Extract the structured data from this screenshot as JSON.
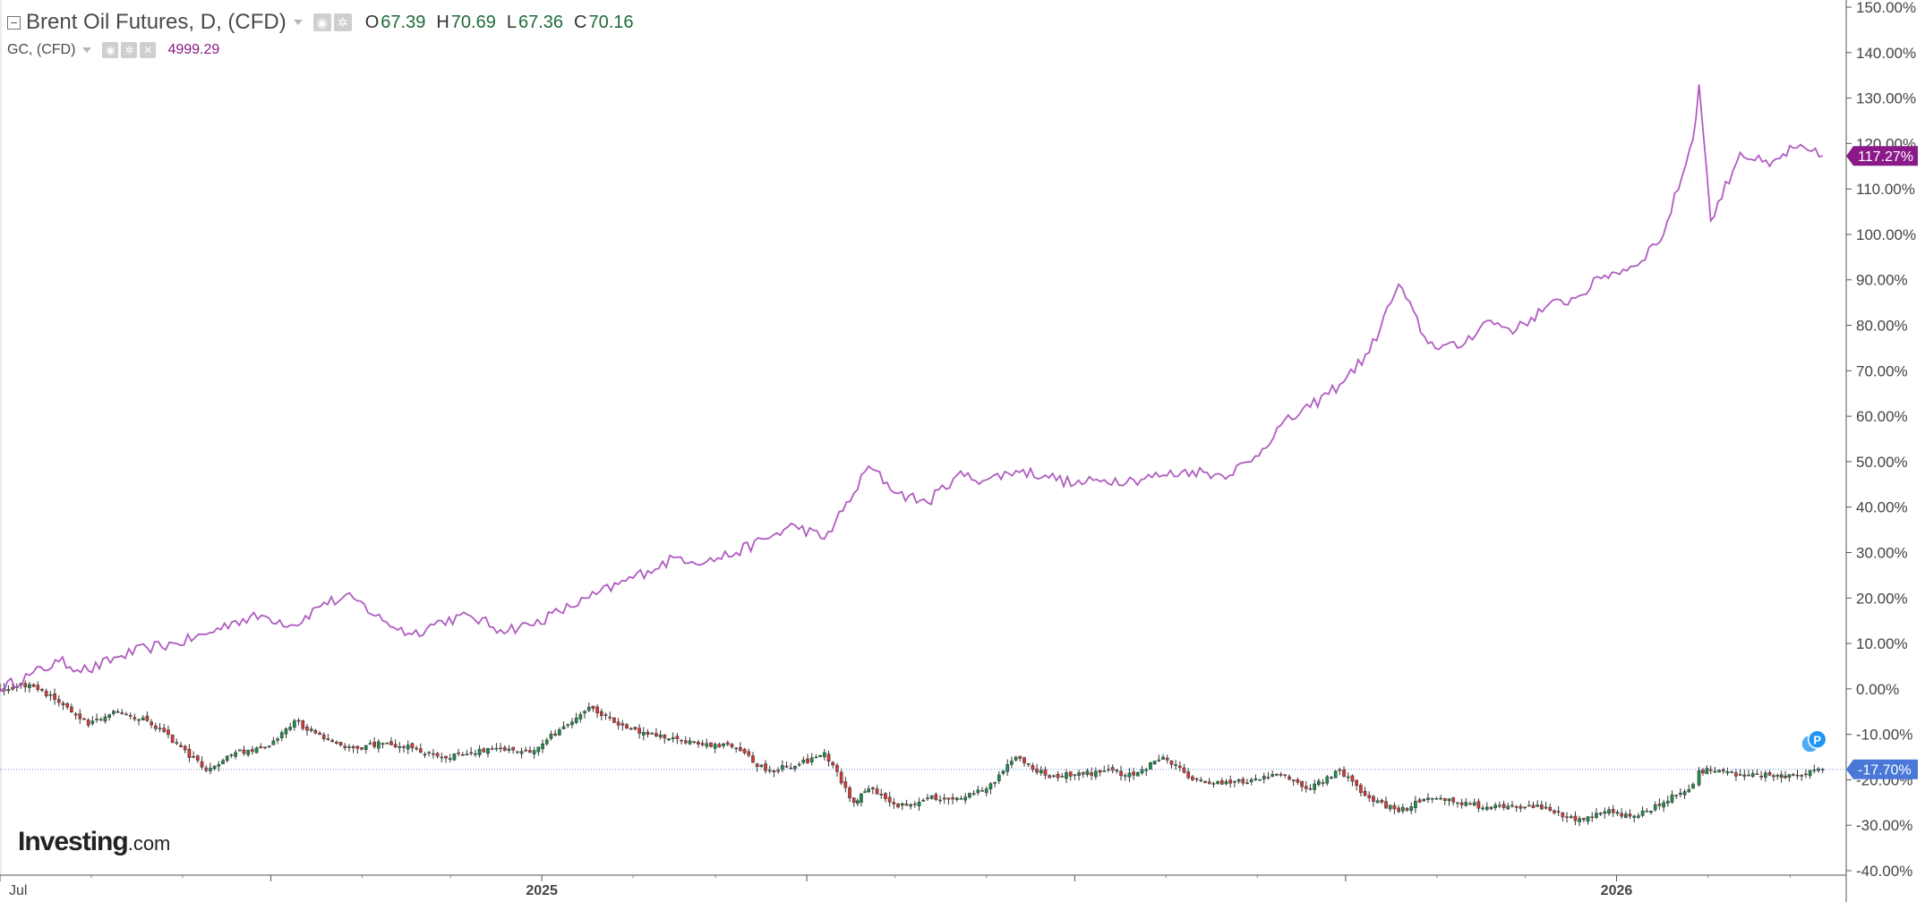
{
  "legend": {
    "main": {
      "title": "Brent Oil Futures, D, (CFD)",
      "ohlc": [
        {
          "key": "O",
          "value": "67.39"
        },
        {
          "key": "H",
          "value": "70.69"
        },
        {
          "key": "L",
          "value": "67.36"
        },
        {
          "key": "C",
          "value": "70.16"
        }
      ]
    },
    "compare": {
      "title": "GC, (CFD)",
      "value": "4999.29"
    }
  },
  "branding": {
    "logo_main": "Investing",
    "logo_suffix": ".com"
  },
  "colors": {
    "gold_line": "#b05cc0",
    "gold_badge": "#8b1a89",
    "price_badge": "#4a78d8",
    "up_candle": "#1e8c4a",
    "down_candle": "#d23a3a",
    "current_line": "#6d8fd8",
    "marker": "#2196f3"
  },
  "chart_data": {
    "type": "line",
    "title": "Brent Oil Futures, D, (CFD)",
    "ylim": [
      -40,
      150
    ],
    "y_tick_labels": [
      "150.00%",
      "140.00%",
      "130.00%",
      "120.00%",
      "110.00%",
      "100.00%",
      "90.00%",
      "80.00%",
      "70.00%",
      "60.00%",
      "50.00%",
      "40.00%",
      "30.00%",
      "20.00%",
      "10.00%",
      "0.00%",
      "-10.00%",
      "-20.00%",
      "-30.00%",
      "-40.00%"
    ],
    "y_tick_values": [
      150,
      140,
      130,
      120,
      110,
      100,
      90,
      80,
      70,
      60,
      50,
      40,
      30,
      20,
      10,
      0,
      -10,
      -20,
      -30,
      -40
    ],
    "xlim": [
      "2024-07-01",
      "2026-03-20"
    ],
    "x_tick_labels": [
      {
        "date": "2024-07-01",
        "label": "Jul"
      },
      {
        "date": "2024-10-01",
        "label": ""
      },
      {
        "date": "2025-01-01",
        "label": "2025"
      },
      {
        "date": "2025-04-01",
        "label": ""
      },
      {
        "date": "2025-07-01",
        "label": ""
      },
      {
        "date": "2025-10-01",
        "label": ""
      },
      {
        "date": "2026-01-01",
        "label": "2026"
      }
    ],
    "x_minor_ticks": [
      "2024-08-01",
      "2024-09-01",
      "2024-11-01",
      "2024-12-01",
      "2025-02-01",
      "2025-03-01",
      "2025-05-01",
      "2025-06-01",
      "2025-08-01",
      "2025-09-01",
      "2025-11-01",
      "2025-12-01",
      "2026-02-01",
      "2026-03-01"
    ],
    "series": [
      {
        "name": "GC, (CFD)",
        "style": "line",
        "last_label": "117.27%",
        "points": [
          [
            "2024-07-01",
            0
          ],
          [
            "2024-07-11",
            3
          ],
          [
            "2024-07-21",
            6
          ],
          [
            "2024-07-31",
            4
          ],
          [
            "2024-08-10",
            7
          ],
          [
            "2024-08-20",
            9
          ],
          [
            "2024-08-30",
            10
          ],
          [
            "2024-09-09",
            12
          ],
          [
            "2024-09-19",
            15
          ],
          [
            "2024-09-29",
            16
          ],
          [
            "2024-10-09",
            14
          ],
          [
            "2024-10-19",
            19
          ],
          [
            "2024-10-29",
            20
          ],
          [
            "2024-11-08",
            15
          ],
          [
            "2024-11-18",
            12
          ],
          [
            "2024-11-28",
            15
          ],
          [
            "2024-12-08",
            16
          ],
          [
            "2024-12-18",
            13
          ],
          [
            "2024-12-28",
            14
          ],
          [
            "2025-01-07",
            17
          ],
          [
            "2025-01-17",
            20
          ],
          [
            "2025-01-27",
            23
          ],
          [
            "2025-02-06",
            26
          ],
          [
            "2025-02-16",
            29
          ],
          [
            "2025-02-26",
            28
          ],
          [
            "2025-03-08",
            30
          ],
          [
            "2025-03-18",
            33
          ],
          [
            "2025-03-28",
            36
          ],
          [
            "2025-04-07",
            33
          ],
          [
            "2025-04-17",
            43
          ],
          [
            "2025-04-22",
            49
          ],
          [
            "2025-05-02",
            43
          ],
          [
            "2025-05-12",
            41
          ],
          [
            "2025-05-22",
            47
          ],
          [
            "2025-06-01",
            46
          ],
          [
            "2025-06-11",
            48
          ],
          [
            "2025-06-21",
            47
          ],
          [
            "2025-07-01",
            45
          ],
          [
            "2025-07-11",
            46
          ],
          [
            "2025-07-21",
            46
          ],
          [
            "2025-07-31",
            47
          ],
          [
            "2025-08-10",
            48
          ],
          [
            "2025-08-20",
            47
          ],
          [
            "2025-08-30",
            50
          ],
          [
            "2025-09-09",
            58
          ],
          [
            "2025-09-19",
            62
          ],
          [
            "2025-09-29",
            67
          ],
          [
            "2025-10-09",
            74
          ],
          [
            "2025-10-19",
            89
          ],
          [
            "2025-10-29",
            76
          ],
          [
            "2025-11-08",
            75
          ],
          [
            "2025-11-18",
            81
          ],
          [
            "2025-11-28",
            79
          ],
          [
            "2025-12-08",
            84
          ],
          [
            "2025-12-18",
            86
          ],
          [
            "2025-12-28",
            91
          ],
          [
            "2026-01-07",
            93
          ],
          [
            "2026-01-17",
            100
          ],
          [
            "2026-01-27",
            121
          ],
          [
            "2026-01-29",
            133
          ],
          [
            "2026-02-02",
            103
          ],
          [
            "2026-02-12",
            118
          ],
          [
            "2026-02-22",
            115
          ],
          [
            "2026-03-02",
            119
          ],
          [
            "2026-03-12",
            117.27
          ]
        ]
      },
      {
        "name": "Brent Oil Futures, D, (CFD)",
        "style": "candlestick",
        "last_label": "-17.70%",
        "points": [
          [
            "2024-07-01",
            0
          ],
          [
            "2024-07-11",
            1
          ],
          [
            "2024-07-21",
            -3
          ],
          [
            "2024-07-31",
            -8
          ],
          [
            "2024-08-10",
            -5
          ],
          [
            "2024-08-20",
            -7
          ],
          [
            "2024-08-30",
            -12
          ],
          [
            "2024-09-09",
            -18
          ],
          [
            "2024-09-19",
            -14
          ],
          [
            "2024-09-29",
            -13
          ],
          [
            "2024-10-09",
            -7
          ],
          [
            "2024-10-19",
            -11
          ],
          [
            "2024-10-29",
            -13
          ],
          [
            "2024-11-08",
            -12
          ],
          [
            "2024-11-18",
            -13
          ],
          [
            "2024-11-28",
            -15
          ],
          [
            "2024-12-08",
            -14
          ],
          [
            "2024-12-18",
            -13
          ],
          [
            "2024-12-28",
            -14
          ],
          [
            "2025-01-07",
            -9
          ],
          [
            "2025-01-17",
            -4
          ],
          [
            "2025-01-27",
            -8
          ],
          [
            "2025-02-06",
            -10
          ],
          [
            "2025-02-16",
            -11
          ],
          [
            "2025-02-26",
            -12
          ],
          [
            "2025-03-08",
            -13
          ],
          [
            "2025-03-18",
            -18
          ],
          [
            "2025-03-28",
            -17
          ],
          [
            "2025-04-07",
            -14
          ],
          [
            "2025-04-17",
            -25
          ],
          [
            "2025-04-22",
            -22
          ],
          [
            "2025-05-02",
            -26
          ],
          [
            "2025-05-12",
            -24
          ],
          [
            "2025-05-22",
            -24
          ],
          [
            "2025-06-01",
            -22
          ],
          [
            "2025-06-11",
            -15
          ],
          [
            "2025-06-21",
            -19
          ],
          [
            "2025-07-01",
            -19
          ],
          [
            "2025-07-11",
            -18
          ],
          [
            "2025-07-21",
            -19
          ],
          [
            "2025-07-31",
            -15
          ],
          [
            "2025-08-10",
            -20
          ],
          [
            "2025-08-20",
            -21
          ],
          [
            "2025-08-30",
            -20
          ],
          [
            "2025-09-09",
            -19
          ],
          [
            "2025-09-19",
            -22
          ],
          [
            "2025-09-29",
            -18
          ],
          [
            "2025-10-09",
            -24
          ],
          [
            "2025-10-19",
            -27
          ],
          [
            "2025-10-29",
            -24
          ],
          [
            "2025-11-08",
            -25
          ],
          [
            "2025-11-18",
            -26
          ],
          [
            "2025-11-28",
            -26
          ],
          [
            "2025-12-08",
            -26
          ],
          [
            "2025-12-18",
            -29
          ],
          [
            "2025-12-28",
            -27
          ],
          [
            "2026-01-07",
            -28
          ],
          [
            "2026-01-17",
            -25
          ],
          [
            "2026-01-27",
            -21
          ],
          [
            "2026-01-29",
            -18
          ],
          [
            "2026-02-02",
            -18
          ],
          [
            "2026-02-12",
            -19
          ],
          [
            "2026-02-22",
            -19
          ],
          [
            "2026-03-02",
            -19
          ],
          [
            "2026-03-12",
            -17.7
          ]
        ]
      }
    ],
    "current_price_line": -17.7,
    "marker": "P"
  }
}
